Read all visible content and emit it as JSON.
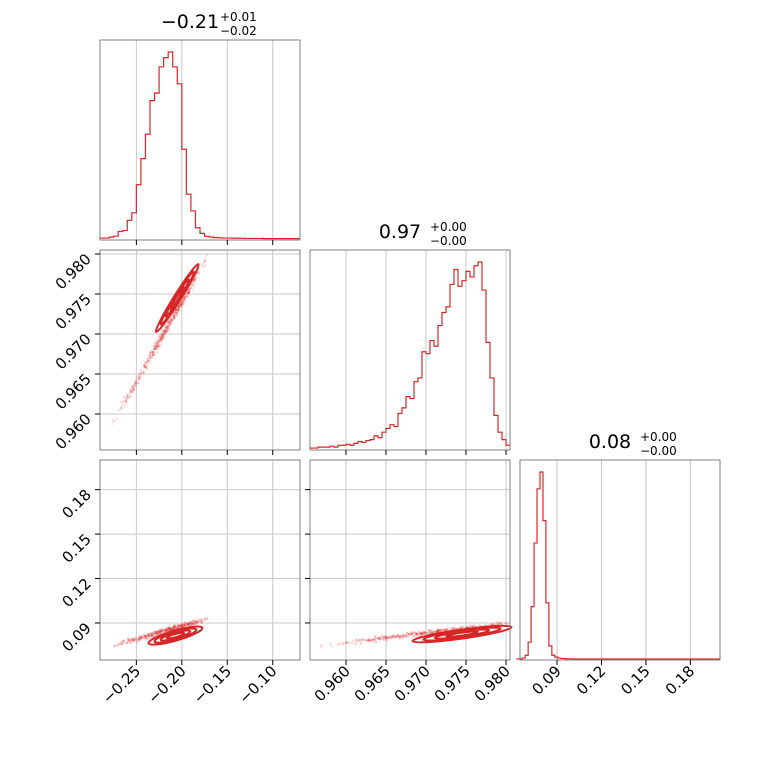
{
  "chart_data": {
    "type": "corner",
    "color": "#d62728",
    "grid": true,
    "parameters": [
      {
        "id": "p1",
        "title": {
          "value": "−0.21",
          "plus": "+0.01",
          "minus": "−0.02"
        },
        "range": [
          -0.29,
          -0.07
        ]
      },
      {
        "id": "p2",
        "title": {
          "value": "0.97",
          "plus": "+0.00",
          "minus": "−0.00"
        },
        "range": [
          0.9555,
          0.9805
        ]
      },
      {
        "id": "p3",
        "title": {
          "value": "0.08",
          "plus": "+0.00",
          "minus": "−0.00"
        },
        "range": [
          0.065,
          0.2
        ]
      }
    ],
    "ticks": {
      "p1": [
        -0.25,
        -0.2,
        -0.15,
        -0.1
      ],
      "p1_labels": [
        "−0.25",
        "−0.20",
        "−0.15",
        "−0.10"
      ],
      "p2": [
        0.96,
        0.965,
        0.97,
        0.975,
        0.98
      ],
      "p2_labels": [
        "0.960",
        "0.965",
        "0.970",
        "0.975",
        "0.980"
      ],
      "p3": [
        0.09,
        0.12,
        0.15,
        0.18
      ],
      "p3_labels": [
        "0.09",
        "0.12",
        "0.15",
        "0.18"
      ]
    },
    "histograms": {
      "p1": {
        "edges": [
          -0.29,
          -0.285,
          -0.28,
          -0.275,
          -0.27,
          -0.265,
          -0.26,
          -0.255,
          -0.25,
          -0.245,
          -0.24,
          -0.235,
          -0.23,
          -0.225,
          -0.22,
          -0.215,
          -0.21,
          -0.205,
          -0.2,
          -0.195,
          -0.19,
          -0.185,
          -0.18,
          -0.175,
          -0.17,
          -0.165,
          -0.16,
          -0.155,
          -0.15,
          -0.145,
          -0.14,
          -0.135,
          -0.13,
          -0.125,
          -0.12,
          -0.115,
          -0.11,
          -0.105,
          -0.1,
          -0.095,
          -0.09,
          -0.085,
          -0.08,
          -0.075,
          -0.07
        ],
        "counts": [
          0.005,
          0.005,
          0.01,
          0.015,
          0.04,
          0.045,
          0.1,
          0.14,
          0.29,
          0.43,
          0.56,
          0.74,
          0.78,
          0.92,
          0.97,
          1.0,
          0.92,
          0.83,
          0.48,
          0.24,
          0.15,
          0.06,
          0.03,
          0.015,
          0.01,
          0.008,
          0.006,
          0.005,
          0.005,
          0.004,
          0.004,
          0.004,
          0.003,
          0.003,
          0.003,
          0.003,
          0.002,
          0.002,
          0.002,
          0.002,
          0.002,
          0.002,
          0.002,
          0.002
        ]
      },
      "p2": {
        "edges": [
          0.9555,
          0.956,
          0.9565,
          0.957,
          0.9575,
          0.958,
          0.9585,
          0.959,
          0.9595,
          0.96,
          0.9605,
          0.961,
          0.9615,
          0.962,
          0.9625,
          0.963,
          0.9635,
          0.964,
          0.9645,
          0.965,
          0.9655,
          0.966,
          0.9665,
          0.967,
          0.9675,
          0.968,
          0.9685,
          0.969,
          0.9695,
          0.97,
          0.9705,
          0.971,
          0.9715,
          0.972,
          0.9725,
          0.973,
          0.9735,
          0.974,
          0.9745,
          0.975,
          0.9755,
          0.976,
          0.9765,
          0.977,
          0.9775,
          0.978,
          0.9785,
          0.979,
          0.9795,
          0.98,
          0.9805
        ],
        "counts": [
          0.005,
          0.005,
          0.01,
          0.01,
          0.01,
          0.015,
          0.01,
          0.02,
          0.02,
          0.025,
          0.02,
          0.03,
          0.04,
          0.035,
          0.045,
          0.05,
          0.07,
          0.06,
          0.09,
          0.11,
          0.13,
          0.12,
          0.19,
          0.22,
          0.28,
          0.27,
          0.36,
          0.38,
          0.52,
          0.51,
          0.58,
          0.55,
          0.66,
          0.73,
          0.76,
          0.88,
          0.96,
          0.87,
          0.9,
          0.95,
          0.92,
          0.98,
          1.0,
          0.85,
          0.57,
          0.38,
          0.18,
          0.09,
          0.05,
          0.02
        ]
      },
      "p3": {
        "edges": [
          0.0625,
          0.0645,
          0.0665,
          0.0685,
          0.0705,
          0.0725,
          0.0745,
          0.0765,
          0.0785,
          0.0805,
          0.0825,
          0.0845,
          0.0865,
          0.0885,
          0.0905,
          0.0925,
          0.0945,
          0.0965,
          0.0985,
          0.1005,
          0.2
        ],
        "counts": [
          0.0,
          0.0,
          0.005,
          0.02,
          0.09,
          0.28,
          0.62,
          0.91,
          1.0,
          0.74,
          0.3,
          0.07,
          0.02,
          0.01,
          0.005,
          0.003,
          0.002,
          0.001,
          0.001,
          0.0
        ]
      }
    },
    "scatter_2d": {
      "p1_p2": {
        "x_range": [
          -0.28,
          -0.17
        ],
        "y_range": [
          0.958,
          0.98
        ]
      },
      "p1_p3": {
        "x_range": [
          -0.28,
          -0.17
        ],
        "y_range": [
          0.074,
          0.093
        ]
      },
      "p2_p3": {
        "x_range": [
          0.956,
          0.9805
        ],
        "y_range": [
          0.074,
          0.09
        ]
      }
    }
  }
}
